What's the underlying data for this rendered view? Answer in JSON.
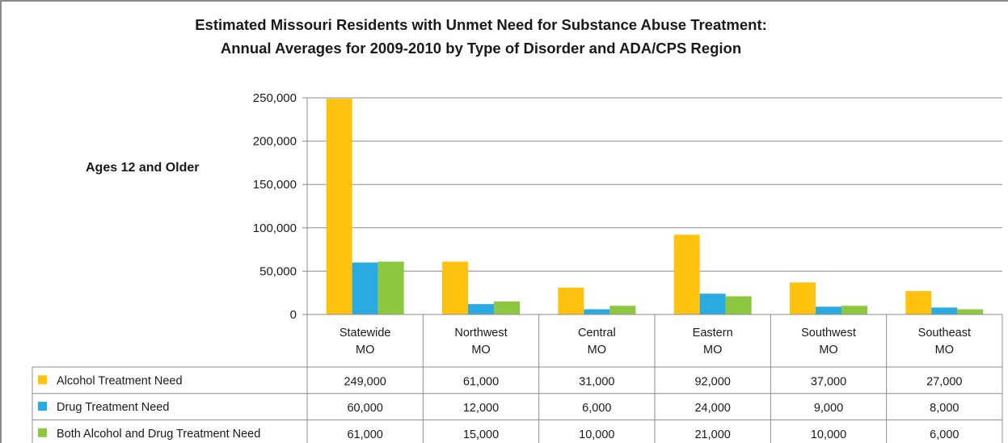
{
  "chart_data": {
    "type": "bar",
    "title_line1": "Estimated Missouri Residents with Unmet Need for Substance Abuse Treatment:",
    "title_line2": "Annual Averages for 2009-2010 by Type of Disorder and ADA/CPS Region",
    "ylabel": "Ages 12 and Older",
    "xlabel": "",
    "ylim": [
      0,
      250000
    ],
    "yticks": [
      "250,000",
      "200,000",
      "150,000",
      "100,000",
      "50,000",
      "0"
    ],
    "ytick_values": [
      250000,
      200000,
      150000,
      100000,
      50000,
      0
    ],
    "categories": [
      [
        "Statewide",
        "MO"
      ],
      [
        "Northwest",
        "MO"
      ],
      [
        "Central",
        "MO"
      ],
      [
        "Eastern",
        "MO"
      ],
      [
        "Southwest",
        "MO"
      ],
      [
        "Southeast",
        "MO"
      ]
    ],
    "series": [
      {
        "name": "Alcohol Treatment Need",
        "color": "#ffc20e",
        "values": [
          249000,
          61000,
          31000,
          92000,
          37000,
          27000
        ],
        "labels": [
          "249,000",
          "61,000",
          "31,000",
          "92,000",
          "37,000",
          "27,000"
        ]
      },
      {
        "name": "Drug Treatment Need",
        "color": "#29abe2",
        "values": [
          60000,
          12000,
          6000,
          24000,
          9000,
          8000
        ],
        "labels": [
          "60,000",
          "12,000",
          "6,000",
          "24,000",
          "9,000",
          "8,000"
        ]
      },
      {
        "name": "Both Alcohol and Drug Treatment Need",
        "color": "#8dc63f",
        "values": [
          61000,
          15000,
          10000,
          21000,
          10000,
          6000
        ],
        "labels": [
          "61,000",
          "15,000",
          "10,000",
          "21,000",
          "10,000",
          "6,000"
        ]
      }
    ],
    "grid": true,
    "legend": "data-table"
  }
}
